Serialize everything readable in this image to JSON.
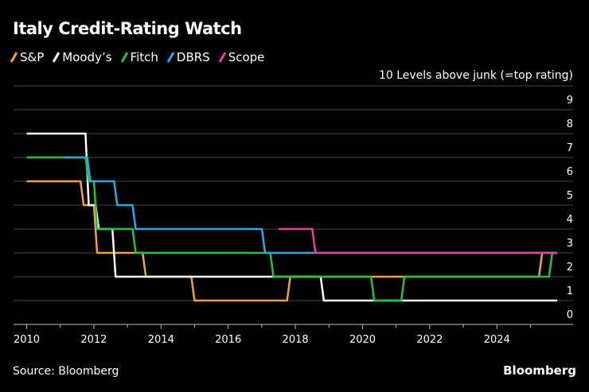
{
  "chart_data": {
    "type": "line",
    "step": true,
    "title": "Italy Credit-Rating Watch",
    "ylabel": "10 Levels above junk (=top rating)",
    "ylim": [
      0,
      10
    ],
    "xlim": [
      2009.8,
      2026.0
    ],
    "yticks": [
      "0",
      "1",
      "2",
      "3",
      "4",
      "5",
      "6",
      "7",
      "8",
      "9"
    ],
    "xticks": [
      "2010",
      "2012",
      "2014",
      "2016",
      "2018",
      "2020",
      "2022",
      "2024"
    ],
    "grid": true,
    "legend_placement": "top-left",
    "series": [
      {
        "name": "S&P",
        "color": "#f7a035",
        "points": [
          [
            2010.0,
            6
          ],
          [
            2011.65,
            5
          ],
          [
            2012.05,
            3
          ],
          [
            2013.5,
            2
          ],
          [
            2014.95,
            1
          ],
          [
            2017.8,
            2
          ],
          [
            2025.3,
            3
          ],
          [
            2025.75,
            3
          ]
        ]
      },
      {
        "name": "Moody’s",
        "color": "#ffffff",
        "points": [
          [
            2010.0,
            8
          ],
          [
            2011.8,
            5
          ],
          [
            2012.1,
            4
          ],
          [
            2012.6,
            2
          ],
          [
            2018.8,
            1
          ],
          [
            2025.75,
            1
          ]
        ]
      },
      {
        "name": "Fitch",
        "color": "#1fc43f",
        "points": [
          [
            2010.0,
            7
          ],
          [
            2011.8,
            6
          ],
          [
            2012.05,
            4
          ],
          [
            2013.2,
            3
          ],
          [
            2017.3,
            2
          ],
          [
            2020.3,
            1
          ],
          [
            2021.2,
            2
          ],
          [
            2025.6,
            3
          ],
          [
            2025.75,
            3
          ]
        ]
      },
      {
        "name": "DBRS",
        "color": "#2aa9e8",
        "points": [
          [
            2011.15,
            7
          ],
          [
            2011.85,
            6
          ],
          [
            2012.65,
            5
          ],
          [
            2013.2,
            4
          ],
          [
            2017.05,
            3
          ],
          [
            2025.75,
            3
          ]
        ]
      },
      {
        "name": "Scope",
        "color": "#e8409e",
        "points": [
          [
            2017.5,
            4
          ],
          [
            2018.55,
            3
          ],
          [
            2025.75,
            3
          ]
        ]
      }
    ]
  },
  "source": "Source: Bloomberg",
  "brand": "Bloomberg"
}
